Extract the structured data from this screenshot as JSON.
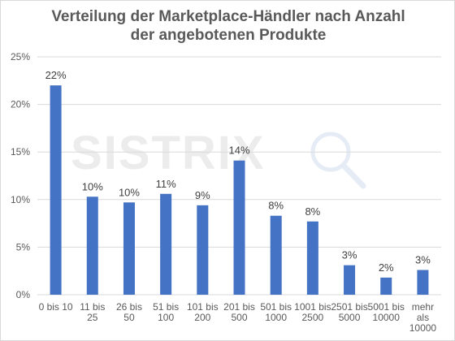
{
  "chart_data": {
    "type": "bar",
    "title": "Verteilung der Marketplace-Händler nach Anzahl\nder angebotenen Produkte",
    "categories": [
      [
        "0 bis 10"
      ],
      [
        "11 bis",
        "25"
      ],
      [
        "26 bis",
        "50"
      ],
      [
        "51 bis",
        "100"
      ],
      [
        "101 bis",
        "200"
      ],
      [
        "201 bis",
        "500"
      ],
      [
        "501 bis",
        "1000"
      ],
      [
        "1001 bis",
        "2500"
      ],
      [
        "2501 bis",
        "5000"
      ],
      [
        "5001 bis",
        "10000"
      ],
      [
        "mehr",
        "als",
        "10000"
      ]
    ],
    "values": [
      22,
      10.3,
      9.7,
      10.6,
      9.4,
      14.1,
      8.3,
      7.7,
      3.1,
      1.8,
      2.6
    ],
    "data_labels": [
      "22%",
      "10%",
      "10%",
      "11%",
      "9%",
      "14%",
      "8%",
      "8%",
      "3%",
      "2%",
      "3%"
    ],
    "ylim": [
      0,
      25
    ],
    "yticks": [
      0,
      5,
      10,
      15,
      20,
      25
    ],
    "ytick_labels": [
      "0%",
      "5%",
      "10%",
      "15%",
      "20%",
      "25%"
    ],
    "grid": true,
    "bar_color": "#4472c4",
    "grid_color": "#d9d9d9",
    "watermark": "SISTRIX"
  }
}
